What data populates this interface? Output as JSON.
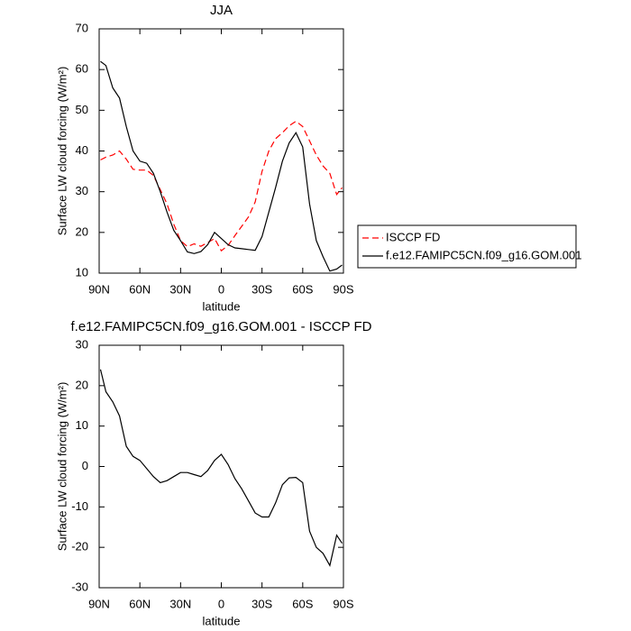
{
  "chart_data": [
    {
      "type": "line",
      "title": "JJA",
      "xlabel": "latitude",
      "ylabel": "Surface LW cloud forcing (W/m²)",
      "x": [
        89,
        85,
        80,
        75,
        70,
        65,
        60,
        55,
        50,
        45,
        40,
        35,
        30,
        25,
        20,
        15,
        10,
        5,
        0,
        -5,
        -10,
        -15,
        -20,
        -25,
        -30,
        -35,
        -40,
        -45,
        -50,
        -55,
        -60,
        -65,
        -70,
        -75,
        -80,
        -85,
        -89
      ],
      "xlim": [
        90,
        -90
      ],
      "xticks": [
        {
          "value": 90,
          "label": "90N"
        },
        {
          "value": 60,
          "label": "60N"
        },
        {
          "value": 30,
          "label": "30N"
        },
        0,
        {
          "value": -30,
          "label": "30S"
        },
        {
          "value": -60,
          "label": "60S"
        },
        {
          "value": -90,
          "label": "90S"
        }
      ],
      "ylim": [
        10,
        70
      ],
      "yticks": [
        10,
        20,
        30,
        40,
        50,
        60,
        70
      ],
      "legend": "outside-right",
      "series": [
        {
          "name": "ISCCP FD",
          "color": "#ff0000",
          "dashed": true,
          "values": [
            37.8,
            38.5,
            39,
            40,
            38,
            35.5,
            35.3,
            35.3,
            34,
            30.5,
            27,
            22,
            18,
            16.5,
            17.2,
            16.6,
            17.5,
            18.5,
            15.5,
            16.8,
            19.2,
            21.5,
            23.8,
            27.5,
            35,
            40,
            43,
            44.5,
            46.2,
            47.3,
            46,
            42.5,
            39,
            36.3,
            34.5,
            29.3,
            31
          ]
        },
        {
          "name": "f.e12.FAMIPC5CN.f09_g16.GOM.001",
          "color": "#000000",
          "dashed": false,
          "values": [
            62,
            61,
            55.5,
            53,
            46,
            40,
            37.5,
            37,
            34.5,
            30,
            25,
            20.5,
            18,
            15.2,
            14.8,
            15.3,
            17,
            20,
            18.5,
            17,
            16.2,
            16,
            15.8,
            15.6,
            19,
            25,
            31,
            37.5,
            42,
            44.5,
            41,
            27,
            18,
            14,
            10.5,
            11,
            12
          ]
        }
      ]
    },
    {
      "type": "line",
      "title": "f.e12.FAMIPC5CN.f09_g16.GOM.001 - ISCCP FD",
      "xlabel": "latitude",
      "ylabel": "Surface LW cloud forcing (W/m²)",
      "x": [
        89,
        85,
        80,
        75,
        70,
        65,
        60,
        55,
        50,
        45,
        40,
        35,
        30,
        25,
        20,
        15,
        10,
        5,
        0,
        -5,
        -10,
        -15,
        -20,
        -25,
        -30,
        -35,
        -40,
        -45,
        -50,
        -55,
        -60,
        -65,
        -70,
        -75,
        -80,
        -85,
        -89
      ],
      "xlim": [
        90,
        -90
      ],
      "xticks": [
        {
          "value": 90,
          "label": "90N"
        },
        {
          "value": 60,
          "label": "60N"
        },
        {
          "value": 30,
          "label": "30N"
        },
        0,
        {
          "value": -30,
          "label": "30S"
        },
        {
          "value": -60,
          "label": "60S"
        },
        {
          "value": -90,
          "label": "90S"
        }
      ],
      "ylim": [
        -30,
        30
      ],
      "yticks": [
        -30,
        -20,
        -10,
        0,
        10,
        20,
        30
      ],
      "color": "#000000",
      "values": [
        24,
        18.5,
        16,
        12.5,
        5,
        2.5,
        1.5,
        -0.5,
        -2.5,
        -4,
        -3.5,
        -2.5,
        -1.5,
        -1.5,
        -2,
        -2.5,
        -1,
        1.5,
        3,
        0.5,
        -3,
        -5.5,
        -8.5,
        -11.5,
        -12.5,
        -12.5,
        -9,
        -4.5,
        -2.8,
        -2.7,
        -4,
        -16,
        -20,
        -21.5,
        -24.5,
        -17,
        -19
      ]
    }
  ]
}
